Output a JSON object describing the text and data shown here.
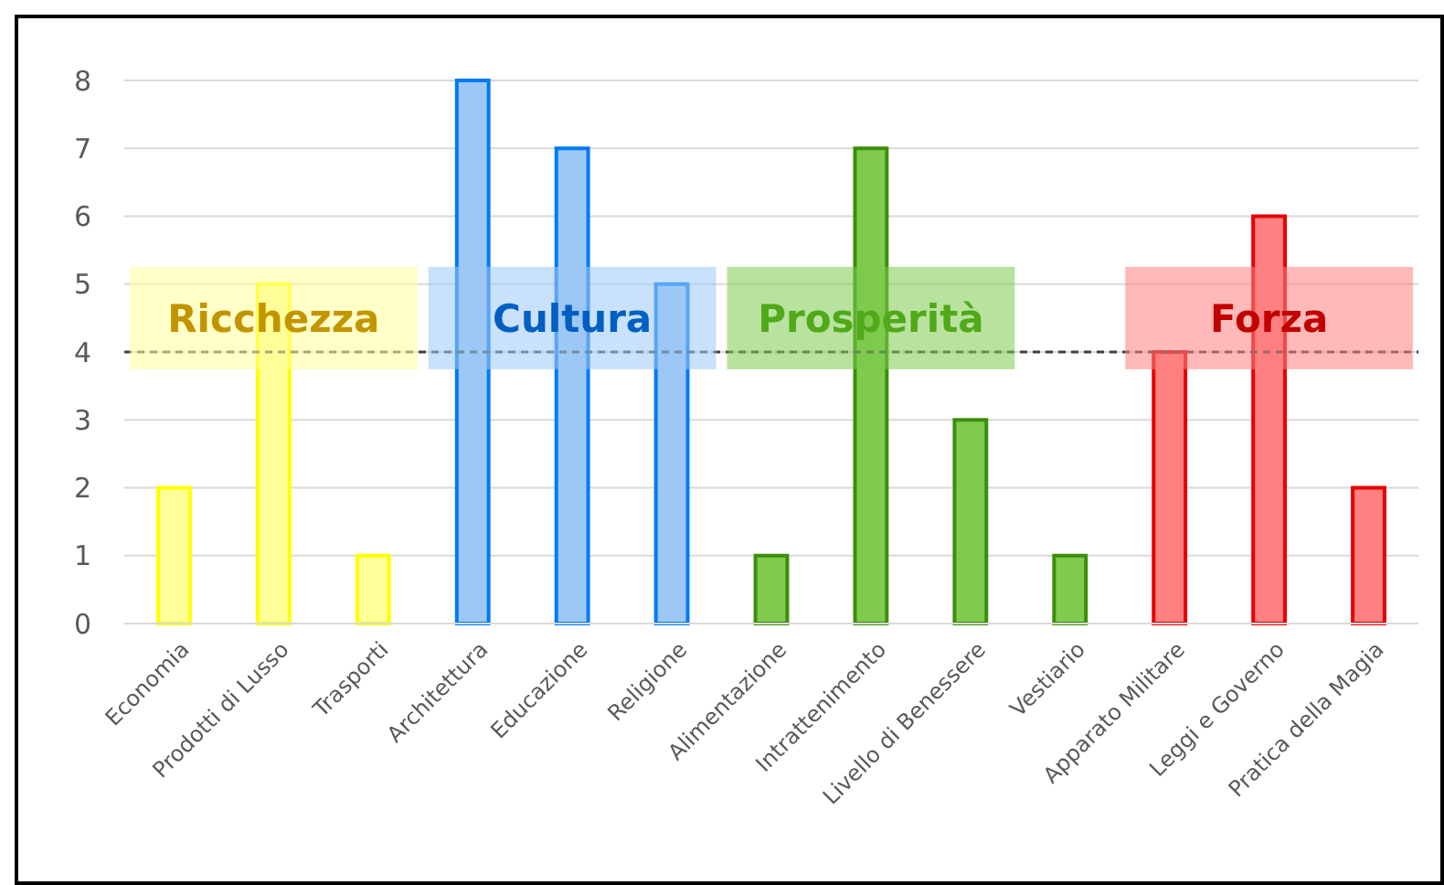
{
  "chart_data": {
    "type": "bar",
    "categories": [
      "Economia",
      "Prodotti di Lusso",
      "Trasporti",
      "Architettura",
      "Educazione",
      "Religione",
      "Alimentazione",
      "Intrattenimento",
      "Livello di Benessere",
      "Vestiario",
      "Apparato Militare",
      "Leggi e Governo",
      "Pratica della Magia"
    ],
    "values": [
      2,
      5,
      1,
      8,
      7,
      5,
      1,
      7,
      3,
      1,
      4,
      6,
      2
    ],
    "colors": [
      "#ffff99",
      "#ffff99",
      "#ffff99",
      "#9dc8f5",
      "#9dc8f5",
      "#9dc8f5",
      "#7ecb4e",
      "#7ecb4e",
      "#7ecb4e",
      "#7ecb4e",
      "#ff8080",
      "#ff8080",
      "#ff8080"
    ],
    "ylim": [
      0,
      8
    ],
    "yticks": [
      0,
      1,
      2,
      3,
      4,
      5,
      6,
      7,
      8
    ],
    "grid": "y",
    "ref_lines": [
      {
        "axis": "y",
        "value": 4,
        "color": "#404040",
        "line_style": "dashed"
      }
    ],
    "annotations": [
      {
        "text": "Ricchezza",
        "x": "Prodotti di Lusso",
        "y": 4.5
      },
      {
        "text": "Cultura",
        "x": "Educazione",
        "y": 4.5
      },
      {
        "text": "Prosperità",
        "x": "Intrattenimento",
        "y": 4.5
      },
      {
        "text": "Forza",
        "x": "Leggi e Governo",
        "y": 4.5
      }
    ]
  }
}
